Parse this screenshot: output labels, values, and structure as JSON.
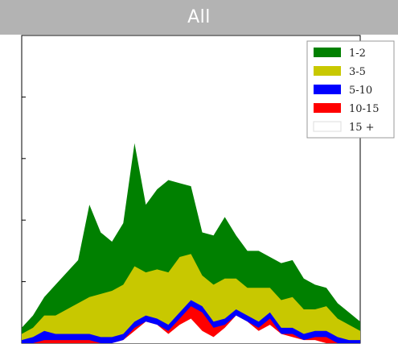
{
  "chart_data": {
    "type": "area",
    "stacked": true,
    "title": "All",
    "xlabel": "",
    "ylabel": "",
    "x_range": [
      0,
      300
    ],
    "ylim": [
      0,
      100
    ],
    "grid": true,
    "legend_position": "top-right",
    "series": [
      {
        "name": "15 +",
        "color": "#ffffff",
        "x": [
          0,
          10,
          20,
          30,
          40,
          50,
          60,
          70,
          80,
          90,
          100,
          110,
          120,
          130,
          140,
          150,
          160,
          170,
          180,
          190,
          200,
          210,
          220,
          230,
          240,
          250,
          260,
          270,
          280,
          290,
          300
        ],
        "values": [
          0,
          0,
          0,
          0,
          0,
          0,
          0,
          0,
          0,
          1,
          4,
          7,
          6,
          3,
          6,
          8,
          4,
          2,
          5,
          9,
          7,
          4,
          6,
          3,
          2,
          1,
          1,
          0,
          0,
          0,
          0
        ]
      },
      {
        "name": "10-15",
        "color": "#ff0000",
        "x": [
          0,
          10,
          20,
          30,
          40,
          50,
          60,
          70,
          80,
          90,
          100,
          110,
          120,
          130,
          140,
          150,
          160,
          170,
          180,
          190,
          200,
          210,
          220,
          230,
          240,
          250,
          260,
          270,
          280,
          290,
          300
        ],
        "values": [
          0,
          0,
          1,
          1,
          1,
          1,
          1,
          0,
          0,
          0,
          1,
          0,
          0,
          1,
          2,
          4,
          6,
          3,
          1,
          0,
          0,
          1,
          2,
          0,
          1,
          0,
          1,
          2,
          0,
          0,
          0
        ]
      },
      {
        "name": "5-10",
        "color": "#0000ff",
        "x": [
          0,
          10,
          20,
          30,
          40,
          50,
          60,
          70,
          80,
          90,
          100,
          110,
          120,
          130,
          140,
          150,
          160,
          170,
          180,
          190,
          200,
          210,
          220,
          230,
          240,
          250,
          260,
          270,
          280,
          290,
          300
        ],
        "values": [
          1,
          2,
          3,
          2,
          2,
          2,
          2,
          2,
          2,
          2,
          2,
          2,
          2,
          2,
          2,
          2,
          2,
          2,
          2,
          2,
          2,
          2,
          2,
          2,
          2,
          2,
          2,
          2,
          2,
          1,
          1
        ]
      },
      {
        "name": "3-5",
        "color": "#c8c800",
        "x": [
          0,
          10,
          20,
          30,
          40,
          50,
          60,
          70,
          80,
          90,
          100,
          110,
          120,
          130,
          140,
          150,
          160,
          170,
          180,
          190,
          200,
          210,
          220,
          230,
          240,
          250,
          260,
          270,
          280,
          290,
          300
        ],
        "values": [
          2,
          3,
          5,
          6,
          8,
          10,
          12,
          14,
          15,
          16,
          18,
          14,
          16,
          17,
          18,
          15,
          10,
          12,
          13,
          10,
          9,
          11,
          8,
          9,
          10,
          8,
          7,
          8,
          6,
          5,
          3
        ]
      },
      {
        "name": "1-2",
        "color": "#008000",
        "x": [
          0,
          10,
          20,
          30,
          40,
          50,
          60,
          70,
          80,
          90,
          100,
          110,
          120,
          130,
          140,
          150,
          160,
          170,
          180,
          190,
          200,
          210,
          220,
          230,
          240,
          250,
          260,
          270,
          280,
          290,
          300
        ],
        "values": [
          2,
          4,
          6,
          10,
          12,
          14,
          30,
          20,
          16,
          20,
          40,
          22,
          26,
          30,
          24,
          22,
          14,
          16,
          20,
          14,
          12,
          12,
          10,
          12,
          12,
          10,
          8,
          6,
          5,
          4,
          3
        ]
      }
    ],
    "legend_order": [
      "1-2",
      "3-5",
      "5-10",
      "10-15",
      "15 +"
    ]
  }
}
